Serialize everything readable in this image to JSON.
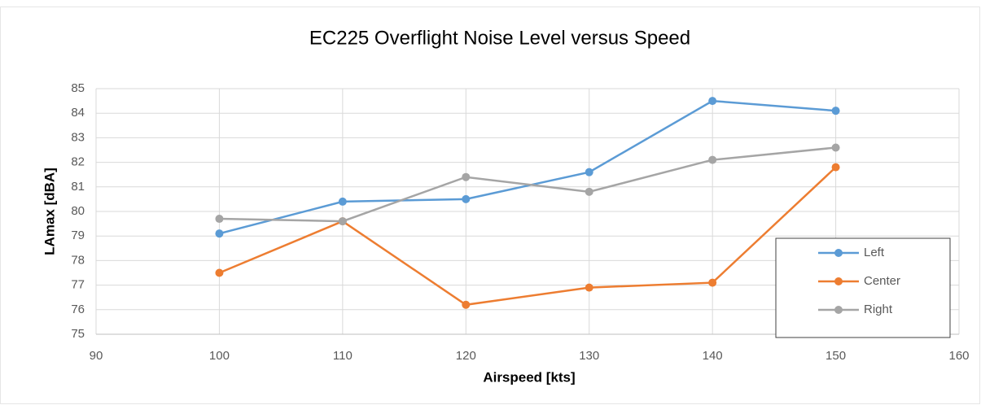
{
  "chart_data": {
    "type": "line",
    "title": "EC225 Overflight Noise Level versus Speed",
    "xlabel": "Airspeed [kts]",
    "ylabel": "LAmax [dBA]",
    "x": [
      100,
      110,
      120,
      130,
      140,
      150
    ],
    "series": [
      {
        "name": "Left",
        "color": "#5b9bd5",
        "values": [
          79.1,
          80.4,
          80.5,
          81.6,
          84.5,
          84.1
        ]
      },
      {
        "name": "Center",
        "color": "#ed7d31",
        "values": [
          77.5,
          79.6,
          76.2,
          76.9,
          77.1,
          81.8
        ]
      },
      {
        "name": "Right",
        "color": "#a5a5a5",
        "values": [
          79.7,
          79.6,
          81.4,
          80.8,
          82.1,
          82.6
        ]
      }
    ],
    "xlim": [
      90,
      160
    ],
    "xticks": [
      90,
      100,
      110,
      120,
      130,
      140,
      150,
      160
    ],
    "ylim": [
      75,
      85
    ],
    "yticks": [
      75,
      76,
      77,
      78,
      79,
      80,
      81,
      82,
      83,
      84,
      85
    ],
    "grid": true,
    "legend": "lower right"
  }
}
